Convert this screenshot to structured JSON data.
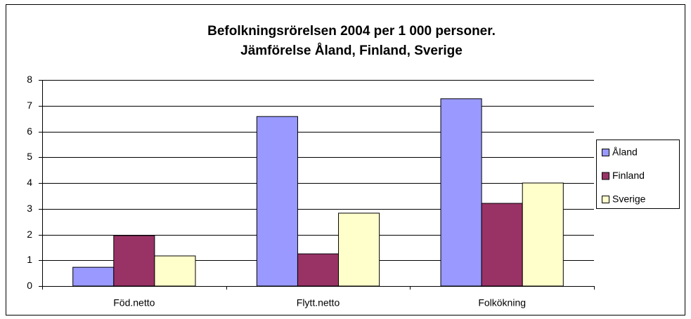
{
  "chart_data": {
    "type": "bar",
    "title": [
      "Befolkningsrörelsen 2004 per 1 000 personer.",
      "Jämförelse Åland, Finland, Sverige"
    ],
    "categories": [
      "Föd.netto",
      "Flytt.netto",
      "Folkökning"
    ],
    "series": [
      {
        "name": "Åland",
        "color": "#9999ff",
        "values": [
          0.73,
          6.58,
          7.27
        ]
      },
      {
        "name": "Finland",
        "color": "#993366",
        "values": [
          1.96,
          1.25,
          3.21
        ]
      },
      {
        "name": "Sverige",
        "color": "#ffffcc",
        "values": [
          1.17,
          2.83,
          4.0
        ]
      }
    ],
    "ylim": [
      0,
      8
    ],
    "yticks": [
      0,
      1,
      2,
      3,
      4,
      5,
      6,
      7,
      8
    ],
    "grid": true,
    "legend": "right"
  }
}
